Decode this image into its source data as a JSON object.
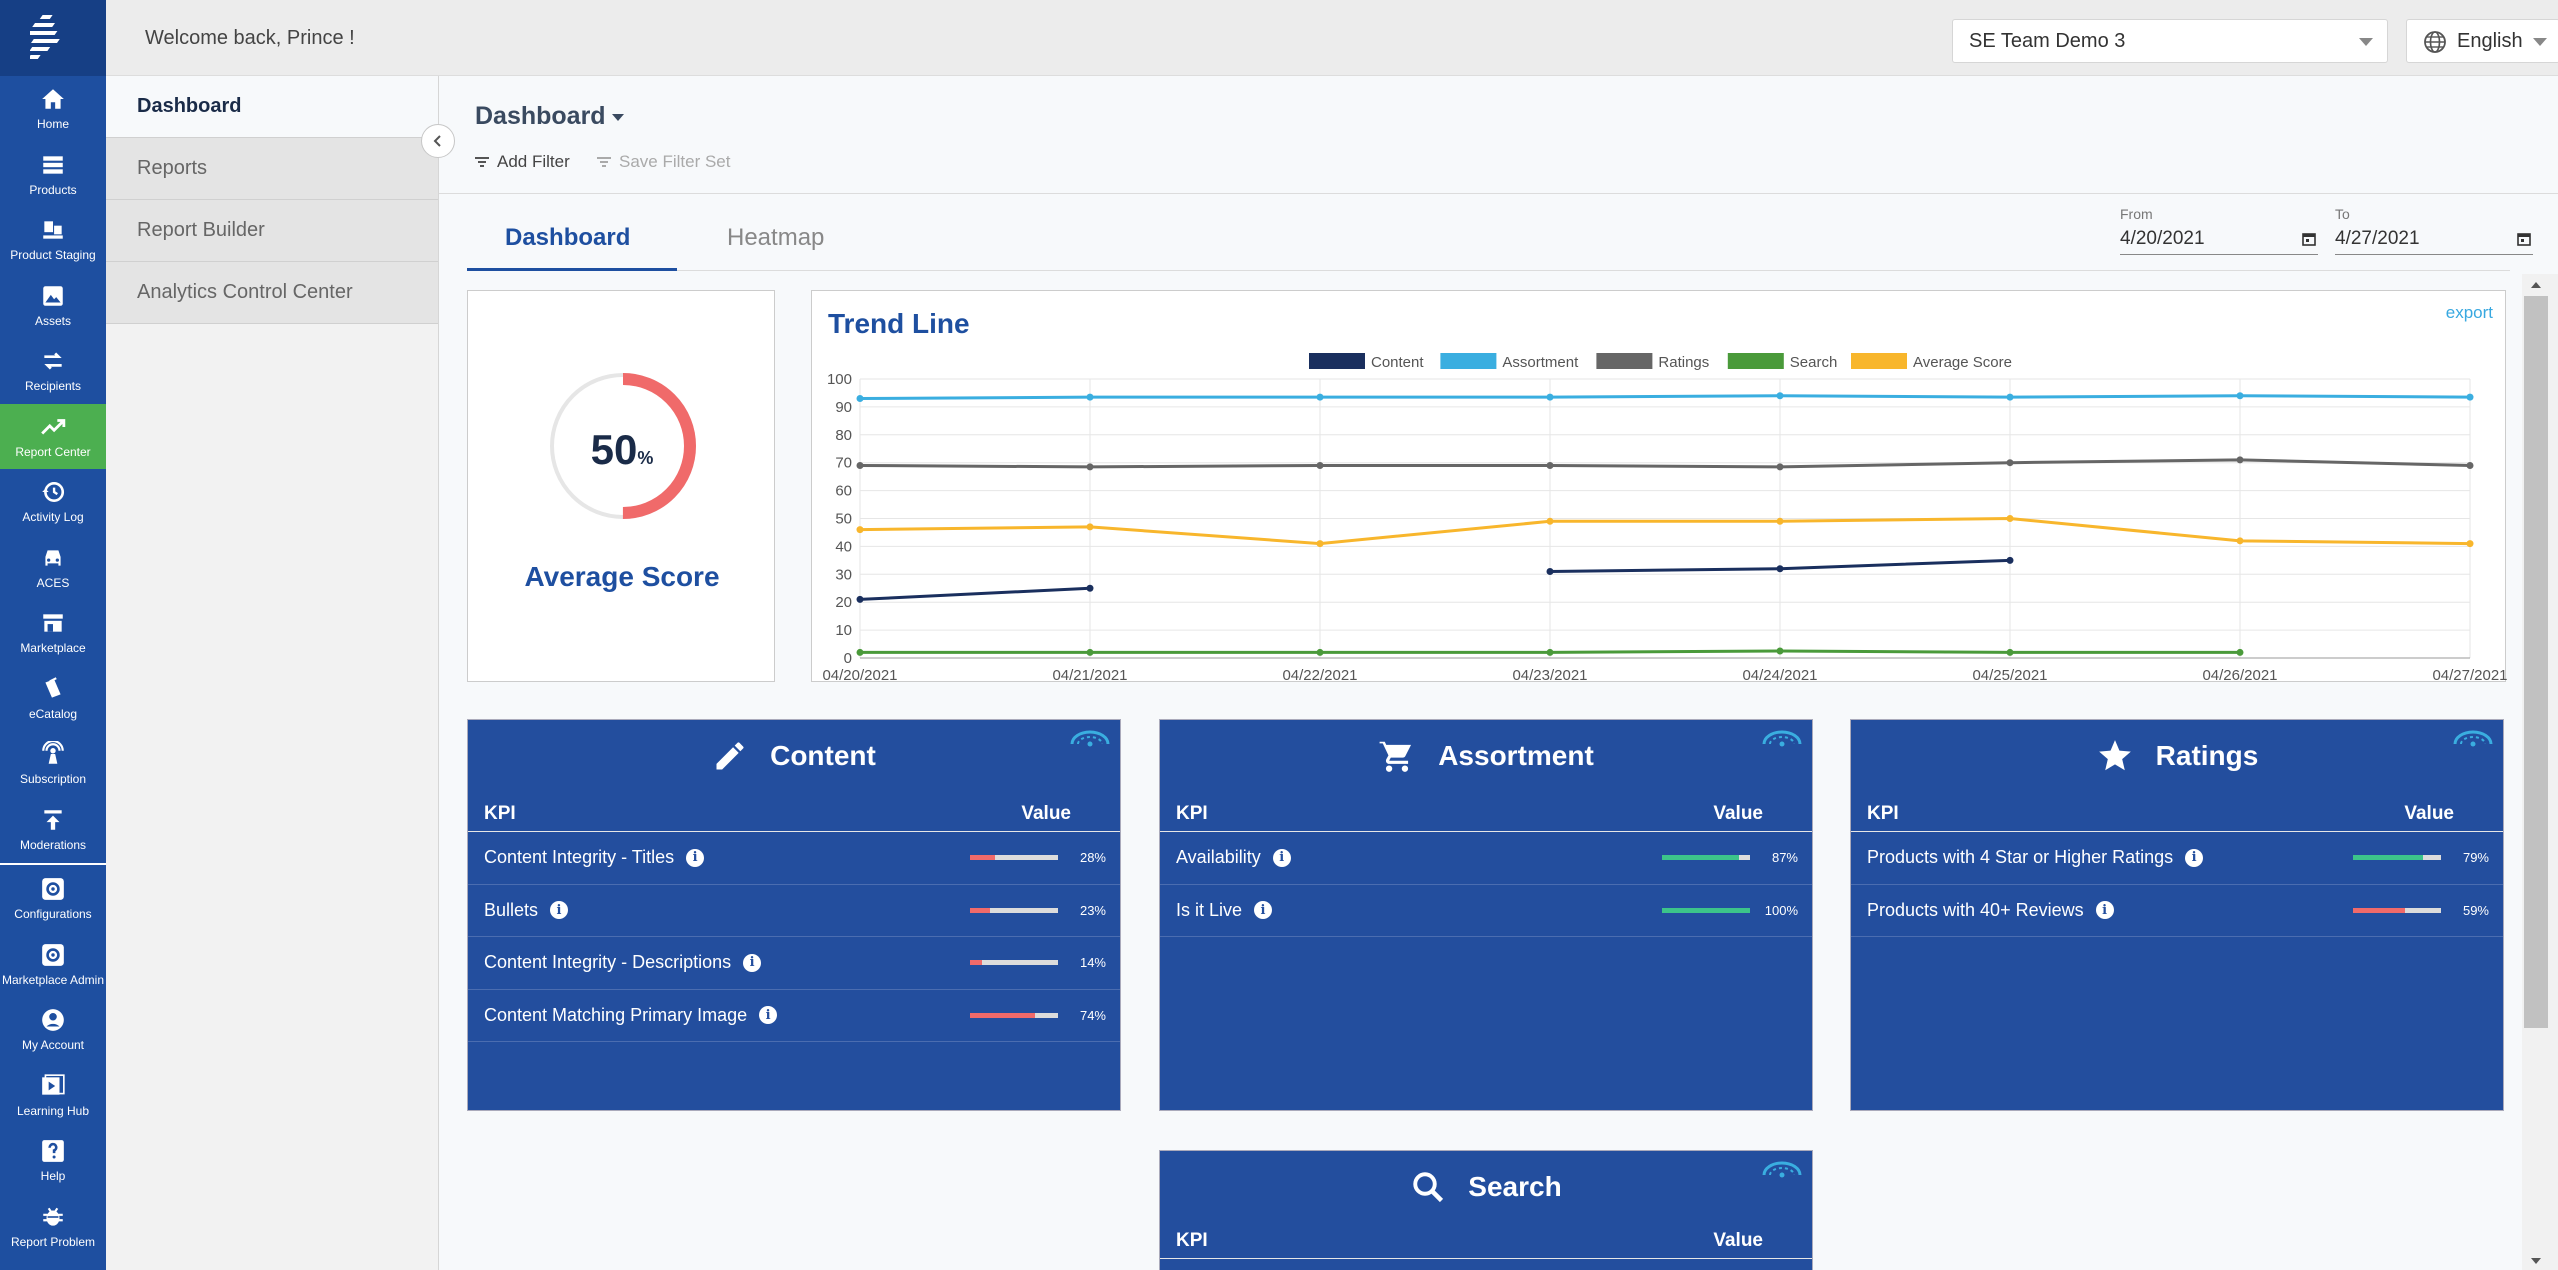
{
  "rail": {
    "items": [
      {
        "label": "Home",
        "icon": "home-icon"
      },
      {
        "label": "Products",
        "icon": "products-icon"
      },
      {
        "label": "Product Staging",
        "icon": "product-staging-icon"
      },
      {
        "label": "Assets",
        "icon": "assets-icon"
      },
      {
        "label": "Recipients",
        "icon": "recipients-icon"
      },
      {
        "label": "Report Center",
        "icon": "report-center-icon"
      },
      {
        "label": "Activity Log",
        "icon": "activity-log-icon"
      },
      {
        "label": "ACES",
        "icon": "car-icon"
      },
      {
        "label": "Marketplace",
        "icon": "store-icon"
      },
      {
        "label": "eCatalog",
        "icon": "catalog-icon"
      },
      {
        "label": "Subscription",
        "icon": "subscription-icon"
      },
      {
        "label": "Moderations",
        "icon": "moderations-icon"
      },
      {
        "label": "Configurations",
        "icon": "gear-icon"
      },
      {
        "label": "Marketplace Admin",
        "icon": "gear-icon"
      },
      {
        "label": "My Account",
        "icon": "account-icon"
      },
      {
        "label": "Learning Hub",
        "icon": "video-icon"
      },
      {
        "label": "Help",
        "icon": "help-icon"
      },
      {
        "label": "Report Problem",
        "icon": "bug-icon"
      }
    ],
    "active_color": "#4caf50"
  },
  "topbar": {
    "welcome": "Welcome back, Prince !",
    "team": "SE Team Demo 3",
    "language": "English"
  },
  "subnav": {
    "items": [
      "Dashboard",
      "Reports",
      "Report Builder",
      "Analytics Control Center"
    ]
  },
  "header": {
    "title": "Dashboard",
    "add_filter": "Add Filter",
    "save_filter": "Save Filter Set"
  },
  "tabs": [
    "Dashboard",
    "Heatmap"
  ],
  "dates": {
    "from_label": "From",
    "from": "4/20/2021",
    "to_label": "To",
    "to": "4/27/2021"
  },
  "score": {
    "value": "50",
    "unit": "%",
    "label": "Average Score",
    "fraction": 0.5,
    "color": "#f06a6a"
  },
  "trend": {
    "title": "Trend Line",
    "export": "export"
  },
  "chart_data": {
    "type": "line",
    "title": "Trend Line",
    "x": [
      "04/20/2021",
      "04/21/2021",
      "04/22/2021",
      "04/23/2021",
      "04/24/2021",
      "04/25/2021",
      "04/26/2021",
      "04/27/2021"
    ],
    "ylim": [
      0,
      100
    ],
    "yticks": [
      0,
      10,
      20,
      30,
      40,
      50,
      60,
      70,
      80,
      90,
      100
    ],
    "grid": true,
    "legend": "top-center",
    "series": [
      {
        "name": "Content",
        "color": "#1a2f5e",
        "values": [
          21,
          25,
          null,
          31,
          32,
          35,
          null,
          null
        ]
      },
      {
        "name": "Assortment",
        "color": "#3aaee0",
        "values": [
          93,
          93.5,
          93.5,
          93.5,
          94,
          93.5,
          94,
          93.5
        ]
      },
      {
        "name": "Ratings",
        "color": "#666666",
        "values": [
          69,
          68.5,
          69,
          69,
          68.5,
          70,
          71,
          69
        ]
      },
      {
        "name": "Search",
        "color": "#4a9a3a",
        "values": [
          2,
          2,
          2,
          2,
          2.5,
          2,
          2,
          null
        ]
      },
      {
        "name": "Average Score",
        "color": "#f8b62c",
        "values": [
          46,
          47,
          41,
          49,
          49,
          50,
          42,
          41
        ]
      }
    ]
  },
  "kpis": {
    "col_kpi": "KPI",
    "col_value": "Value",
    "content": {
      "title": "Content",
      "rows": [
        {
          "label": "Content Integrity - Titles",
          "value": "28%",
          "fraction": 0.28,
          "color": "#f06a6a"
        },
        {
          "label": "Bullets",
          "value": "23%",
          "fraction": 0.23,
          "color": "#f06a6a"
        },
        {
          "label": "Content Integrity - Descriptions",
          "value": "14%",
          "fraction": 0.14,
          "color": "#f06a6a"
        },
        {
          "label": "Content Matching Primary Image",
          "value": "74%",
          "fraction": 0.74,
          "color": "#f06a6a"
        }
      ]
    },
    "assortment": {
      "title": "Assortment",
      "rows": [
        {
          "label": "Availability",
          "value": "87%",
          "fraction": 0.87,
          "color": "#3cc48a"
        },
        {
          "label": "Is it Live",
          "value": "100%",
          "fraction": 1.0,
          "color": "#3cc48a"
        }
      ]
    },
    "ratings": {
      "title": "Ratings",
      "rows": [
        {
          "label": "Products with 4 Star or Higher Ratings",
          "value": "79%",
          "fraction": 0.79,
          "color": "#3cc48a"
        },
        {
          "label": "Products with 40+ Reviews",
          "value": "59%",
          "fraction": 0.59,
          "color": "#f06a6a"
        }
      ]
    },
    "search": {
      "title": "Search"
    }
  }
}
